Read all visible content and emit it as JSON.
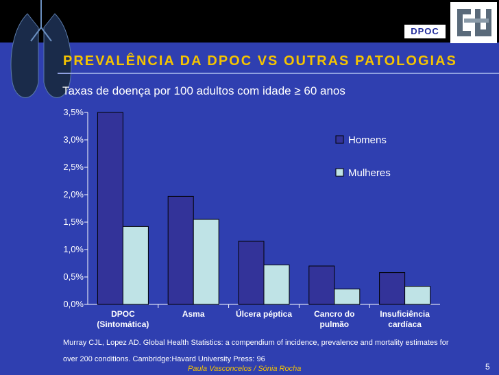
{
  "header": {
    "tag": "DPOC"
  },
  "slide": {
    "title": "PREVALÊNCIA DA DPOC VS OUTRAS PATOLOGIAS",
    "subtitle": "Taxas de doença por 100 adultos com idade ≥ 60 anos",
    "source_line1": "Murray CJL, Lopez AD. Global Health Statistics: a compendium of  incidence, prevalence and mortality estimates for",
    "source_line2": "over 200 conditions. Cambridge:Havard University Press: 96",
    "authors": "Paula Vasconcelos / Sónia Rocha",
    "page_number": "5"
  },
  "colors": {
    "background": "#2f3fb0",
    "title": "#f5c400",
    "homens": "#333399",
    "mulheres": "#bfe3e6"
  },
  "chart_data": {
    "type": "bar",
    "categories": [
      [
        "DPOC",
        "(Sintomática)"
      ],
      [
        "Asma"
      ],
      [
        "Úlcera péptica"
      ],
      [
        "Cancro do",
        "pulmão"
      ],
      [
        "Insuficiência",
        "cardíaca"
      ]
    ],
    "series": [
      {
        "name": "Homens",
        "values": [
          3.5,
          1.97,
          1.15,
          0.7,
          0.58
        ]
      },
      {
        "name": "Mulheres",
        "values": [
          1.42,
          1.55,
          0.72,
          0.28,
          0.33
        ]
      }
    ],
    "yticks": [
      "0,0%",
      "0,5%",
      "1,0%",
      "1,5%",
      "2,0%",
      "2,5%",
      "3,0%",
      "3,5%"
    ],
    "ylim": [
      0,
      3.5
    ],
    "legend_position": "top-right",
    "grid": false
  }
}
